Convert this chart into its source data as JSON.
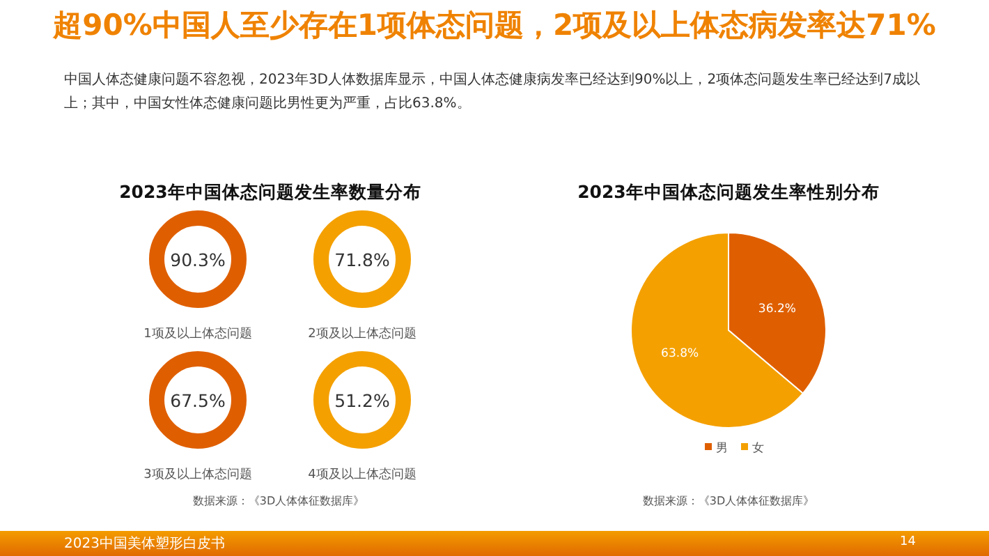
{
  "chart_data": [
    {
      "type": "other",
      "title": "超90%中国人至少存在1项体态问题，2项及以上体态病发率达71%",
      "annotations": [
        "中国人体态健康问题不容忽视，2023年3D人体数据库显示，中国人体态健康病发率已经达到90%以上，2项体态问题发生率已经达到7成以上；其中，中国女性体态健康问题比男性更为严重，占比63.8%。",
        "2023中国美体塑形白皮书",
        "14"
      ]
    },
    {
      "type": "other",
      "title": "2023年中国体态问题发生率数量分布",
      "categories": [
        "1项及以上体态问题",
        "2项及以上体态问题",
        "3项及以上体态问题",
        "4项及以上体态问题"
      ],
      "values": [
        90.3,
        71.8,
        67.5,
        51.2
      ],
      "colors": [
        "#df5f00",
        "#f4a000",
        "#df5f00",
        "#f4a000"
      ],
      "value_labels": [
        "90.3%",
        "71.8%",
        "67.5%",
        "51.2%"
      ],
      "annotations": [
        "数据来源：《3D人体体征数据库》"
      ]
    },
    {
      "type": "pie",
      "title": "2023年中国体态问题发生率性别分布",
      "categories": [
        "男",
        "女"
      ],
      "values": [
        36.2,
        63.8
      ],
      "colors": [
        "#df5f00",
        "#f4a000"
      ],
      "value_labels": [
        "36.2%",
        "63.8%"
      ],
      "legend": "bottom",
      "annotations": [
        "数据来源：《3D人体体征数据库》"
      ]
    }
  ]
}
